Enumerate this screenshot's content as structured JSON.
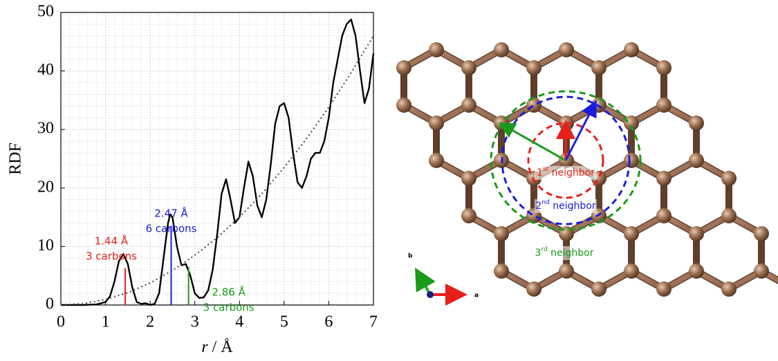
{
  "chart_data": {
    "type": "line",
    "xlabel_var": "r",
    "xlabel_unit": "/ Å",
    "ylabel": "RDF",
    "xlim": [
      0,
      7
    ],
    "xticks": [
      0,
      1,
      2,
      3,
      4,
      5,
      6,
      7
    ],
    "ylim": [
      0,
      50
    ],
    "yticks": [
      0,
      10,
      20,
      30,
      40,
      50
    ],
    "grid": true,
    "series": [
      {
        "color": "#000000",
        "dash": false,
        "x": [
          0,
          0.5,
          0.8,
          1.0,
          1.1,
          1.2,
          1.3,
          1.4,
          1.5,
          1.6,
          1.7,
          1.8,
          1.9,
          2.0,
          2.1,
          2.2,
          2.3,
          2.4,
          2.45,
          2.5,
          2.6,
          2.7,
          2.8,
          2.9,
          3.0,
          3.1,
          3.2,
          3.3,
          3.4,
          3.5,
          3.6,
          3.7,
          3.8,
          3.9,
          4.0,
          4.1,
          4.2,
          4.3,
          4.4,
          4.5,
          4.6,
          4.7,
          4.8,
          4.9,
          5.0,
          5.1,
          5.2,
          5.3,
          5.4,
          5.5,
          5.6,
          5.7,
          5.8,
          5.9,
          6.0,
          6.1,
          6.2,
          6.3,
          6.4,
          6.5,
          6.6,
          6.7,
          6.8,
          6.9,
          7.0
        ],
        "values": [
          0,
          0,
          0.1,
          0.5,
          1.5,
          4,
          7.5,
          8.7,
          7,
          3,
          0.5,
          0.2,
          0.3,
          0,
          0.2,
          2,
          8,
          14,
          15.5,
          15,
          10,
          6.8,
          7,
          5,
          2,
          1.2,
          1.3,
          2.5,
          6,
          12,
          19,
          21.5,
          18,
          14,
          15,
          20,
          24.5,
          22,
          17,
          15,
          18,
          24,
          31,
          34,
          34.5,
          32,
          26,
          21,
          20,
          22,
          25,
          26,
          26,
          28,
          32,
          38,
          42,
          46,
          48,
          48.8,
          46,
          40,
          34.5,
          37,
          43
        ]
      },
      {
        "color": "#444444",
        "dash": true,
        "x": [
          0,
          0.5,
          1,
          1.5,
          2,
          2.5,
          3,
          3.5,
          4,
          4.5,
          5,
          5.5,
          6,
          6.5,
          7
        ],
        "values": [
          0,
          0.23,
          0.94,
          2.1,
          3.76,
          5.9,
          8.5,
          11.5,
          15,
          19,
          23.5,
          28.4,
          33.8,
          39.7,
          46
        ]
      }
    ],
    "markers": [
      {
        "x": 1.44,
        "height": 6.3,
        "color": "#e8201c",
        "label": [
          "1.44 Å",
          "3 carbons"
        ]
      },
      {
        "x": 2.47,
        "height": 13.5,
        "color": "#1c1cdc",
        "label": [
          "2.47 Å",
          "6 carbons"
        ]
      },
      {
        "x": 2.86,
        "height": 6.5,
        "color": "#1a9a1a",
        "label": [
          "2.86 Å",
          "3 carbons"
        ]
      }
    ]
  },
  "diagram": {
    "neighbors": [
      {
        "ordinal": "1",
        "suffix": "st",
        "text": " neighbor",
        "color": "#e8201c"
      },
      {
        "ordinal": "2",
        "suffix": "nd",
        "text": " neighbor",
        "color": "#1c1cdc"
      },
      {
        "ordinal": "3",
        "suffix": "rd",
        "text": " neighbor",
        "color": "#1a9a1a"
      }
    ],
    "axes": {
      "a": "a",
      "b": "b"
    }
  }
}
